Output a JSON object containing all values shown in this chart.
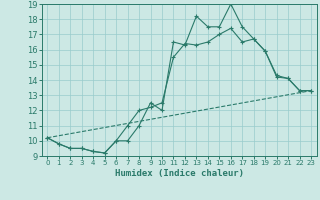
{
  "xlabel": "Humidex (Indice chaleur)",
  "bg_color": "#cce8e4",
  "grid_color": "#99cccc",
  "line_color": "#2a7a6a",
  "xlim": [
    -0.5,
    23.5
  ],
  "ylim": [
    9,
    19
  ],
  "xticks": [
    0,
    1,
    2,
    3,
    4,
    5,
    6,
    7,
    8,
    9,
    10,
    11,
    12,
    13,
    14,
    15,
    16,
    17,
    18,
    19,
    20,
    21,
    22,
    23
  ],
  "yticks": [
    9,
    10,
    11,
    12,
    13,
    14,
    15,
    16,
    17,
    18,
    19
  ],
  "line1_x": [
    0,
    1,
    2,
    3,
    4,
    5,
    6,
    7,
    8,
    9,
    10,
    11,
    12,
    13,
    14,
    15,
    16,
    17,
    18,
    19,
    20,
    21,
    22,
    23
  ],
  "line1_y": [
    10.2,
    9.8,
    9.5,
    9.5,
    9.3,
    9.2,
    10.0,
    10.0,
    11.0,
    12.5,
    12.0,
    16.5,
    16.3,
    18.2,
    17.5,
    17.5,
    19.0,
    17.5,
    16.7,
    15.9,
    14.2,
    14.1,
    13.3,
    13.3
  ],
  "line2_x": [
    0,
    1,
    2,
    3,
    4,
    5,
    6,
    7,
    8,
    9,
    10,
    11,
    12,
    13,
    14,
    15,
    16,
    17,
    18,
    19,
    20,
    21,
    22,
    23
  ],
  "line2_y": [
    10.2,
    9.8,
    9.5,
    9.5,
    9.3,
    9.2,
    10.0,
    11.0,
    12.0,
    12.2,
    12.5,
    15.5,
    16.4,
    16.3,
    16.5,
    17.0,
    17.4,
    16.5,
    16.7,
    15.9,
    14.3,
    14.1,
    13.3,
    13.3
  ],
  "line3_x": [
    0,
    23
  ],
  "line3_y": [
    10.2,
    13.3
  ]
}
